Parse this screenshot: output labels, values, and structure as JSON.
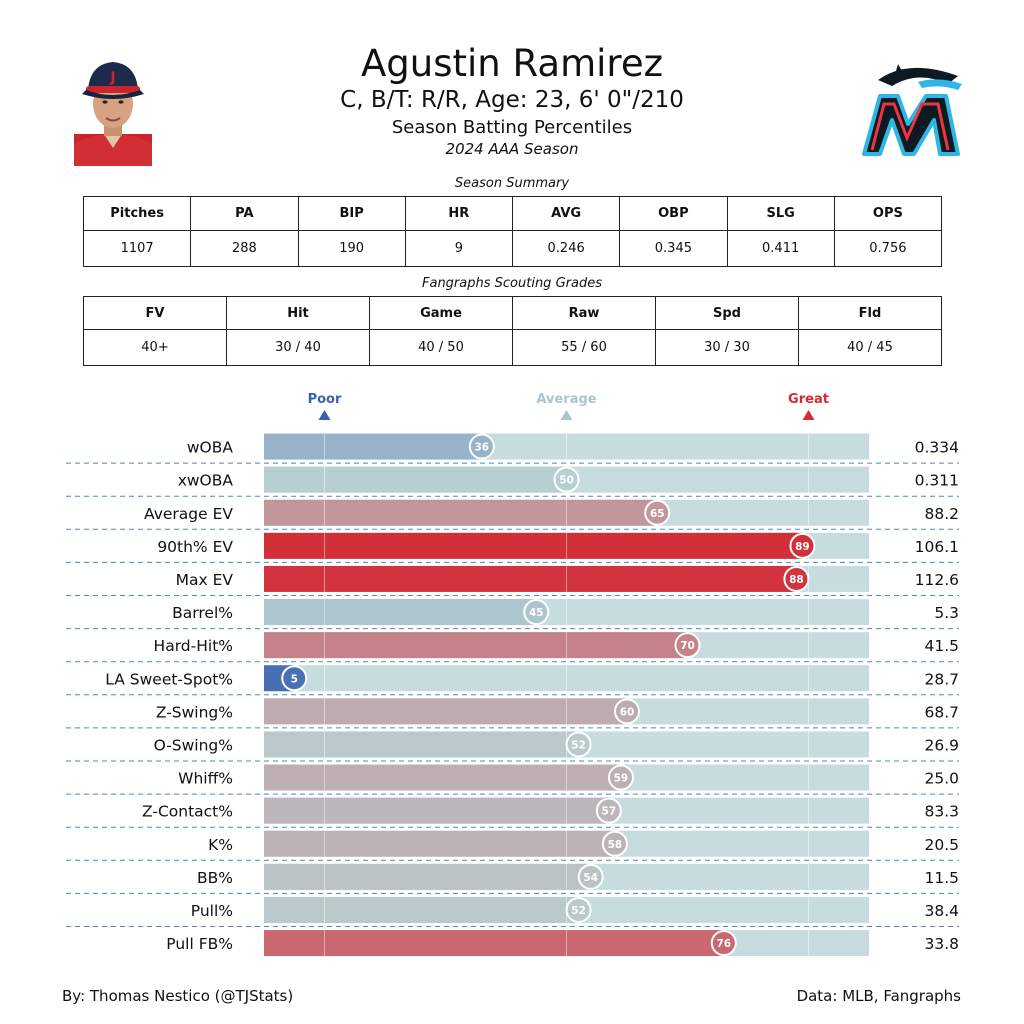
{
  "header": {
    "player_name": "Agustin Ramirez",
    "bio_line": "C, B/T: R/R, Age: 23, 6' 0\"/210",
    "chart_label": "Season Batting Percentiles",
    "season_label": "2024 AAA Season"
  },
  "season_summary": {
    "caption": "Season Summary",
    "headers": [
      "Pitches",
      "PA",
      "BIP",
      "HR",
      "AVG",
      "OBP",
      "SLG",
      "OPS"
    ],
    "values": [
      "1107",
      "288",
      "190",
      "9",
      "0.246",
      "0.345",
      "0.411",
      "0.756"
    ]
  },
  "scouting": {
    "caption": "Fangraphs Scouting Grades",
    "headers": [
      "FV",
      "Hit",
      "Game",
      "Raw",
      "Spd",
      "Fld"
    ],
    "values": [
      "40+",
      "30 / 40",
      "40 / 50",
      "55 / 60",
      "30 / 30",
      "40 / 45"
    ]
  },
  "chart_data": {
    "type": "bar",
    "orientation": "horizontal",
    "scale_labels": {
      "poor": "Poor",
      "average": "Average",
      "great": "Great"
    },
    "xlim": [
      0,
      100
    ],
    "reference_lines": [
      10,
      50,
      90
    ],
    "categories": [
      "wOBA",
      "xwOBA",
      "Average EV",
      "90th% EV",
      "Max EV",
      "Barrel%",
      "Hard-Hit%",
      "LA Sweet-Spot%",
      "Z-Swing%",
      "O-Swing%",
      "Whiff%",
      "Z-Contact%",
      "K%",
      "BB%",
      "Pull%",
      "Pull FB%"
    ],
    "percentiles": [
      36,
      50,
      65,
      89,
      88,
      45,
      70,
      5,
      60,
      52,
      59,
      57,
      58,
      54,
      52,
      76
    ],
    "stat_values": [
      "0.334",
      "0.311",
      "88.2",
      "106.1",
      "112.6",
      "5.3",
      "41.5",
      "28.7",
      "68.7",
      "26.9",
      "25.0",
      "83.3",
      "20.5",
      "11.5",
      "38.4",
      "33.8"
    ],
    "colors": {
      "poor": "#3a62b0",
      "average": "#b8cfd2",
      "great": "#d42a34",
      "track": "#c6dcde"
    }
  },
  "footer": {
    "credit": "By: Thomas Nestico (@TJStats)",
    "source": "Data: MLB, Fangraphs"
  },
  "images": {
    "player_photo": "player-headshot",
    "team_logo": "marlins-logo"
  }
}
